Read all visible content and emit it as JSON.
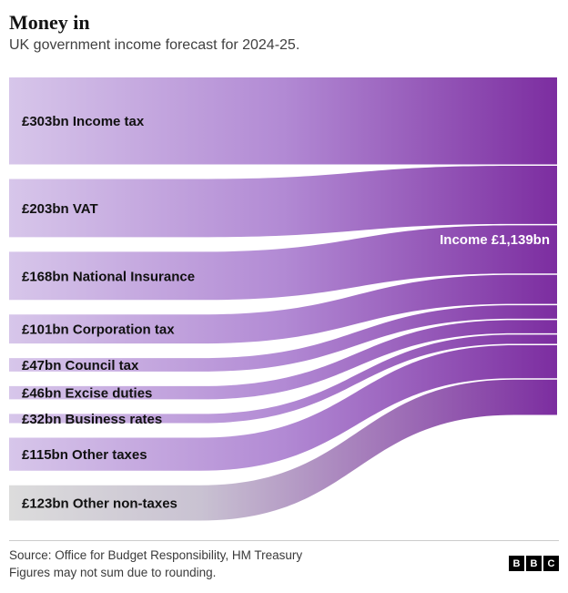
{
  "chart_data": {
    "type": "sankey",
    "title": "Money in",
    "subtitle": "UK government income forecast for 2024-25.",
    "orientation": "left-to-right",
    "unit": "GBP bn",
    "total": 1139,
    "target_label": "Income £1,139bn",
    "flows": [
      {
        "name": "Income tax",
        "label": "£303bn Income tax",
        "value": 303,
        "color": "purple"
      },
      {
        "name": "VAT",
        "label": "£203bn VAT",
        "value": 203,
        "color": "purple"
      },
      {
        "name": "National Insurance",
        "label": "£168bn National Insurance",
        "value": 168,
        "color": "purple"
      },
      {
        "name": "Corporation tax",
        "label": "£101bn Corporation tax",
        "value": 101,
        "color": "purple"
      },
      {
        "name": "Council tax",
        "label": "£47bn Council tax",
        "value": 47,
        "color": "purple"
      },
      {
        "name": "Excise duties",
        "label": "£46bn Excise duties",
        "value": 46,
        "color": "purple"
      },
      {
        "name": "Business rates",
        "label": "£32bn Business rates",
        "value": 32,
        "color": "purple"
      },
      {
        "name": "Other taxes",
        "label": "£115bn Other taxes",
        "value": 115,
        "color": "purple"
      },
      {
        "name": "Other non-taxes",
        "label": "£123bn Other non-taxes",
        "value": 123,
        "color": "gray"
      }
    ],
    "colors": {
      "purple_light": "#d7c6ea",
      "purple_mid": "#b28ad4",
      "purple_dark": "#7c2da0",
      "gray_light": "#dcdcdc",
      "gray_mid": "#c9c2d2"
    }
  },
  "footer": {
    "source_line1": "Source: Office for Budget Responsibility, HM Treasury",
    "source_line2": "Figures may not sum due to rounding.",
    "logo_letters": [
      "B",
      "B",
      "C"
    ]
  }
}
